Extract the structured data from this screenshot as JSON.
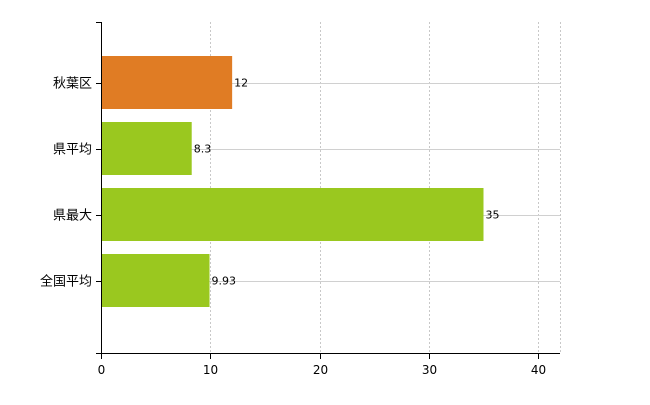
{
  "chart_data": {
    "type": "bar",
    "orientation": "horizontal",
    "categories": [
      "秋葉区",
      "県平均",
      "県最大",
      "全国平均"
    ],
    "series": [
      {
        "values": [
          12,
          8.3,
          35,
          9.93
        ],
        "data_labels": [
          "12",
          "8.3",
          "35",
          "9.93"
        ]
      }
    ],
    "bar_colors": [
      "#e07c24",
      "#9ac81f",
      "#9ac81f",
      "#9ac81f"
    ],
    "xlim": [
      0,
      42
    ],
    "xticks": [
      0,
      10,
      20,
      30,
      40
    ],
    "xtick_labels": [
      "0",
      "10",
      "20",
      "30",
      "40"
    ],
    "grid": {
      "vertical": true,
      "horizontal": true
    },
    "title": "",
    "xlabel": "",
    "ylabel": ""
  }
}
